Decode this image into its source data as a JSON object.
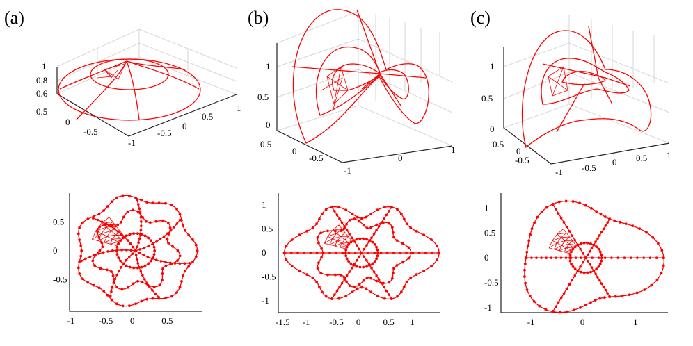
{
  "colors": {
    "curve": "#ff0000",
    "axis": "#222222",
    "grid": "#d6d6d6"
  },
  "chart_data": [
    {
      "panel": "(a)",
      "view": "3d",
      "type": "line",
      "z_ticks": [
        "0.6",
        "0.8",
        "1"
      ],
      "y_ticks": [
        "0.5",
        "0",
        "-0.5",
        "-1"
      ],
      "x_ticks": [
        "-0.5",
        "0",
        "0.5",
        "1"
      ]
    },
    {
      "panel": "(b)",
      "view": "3d",
      "type": "line",
      "z_ticks": [
        "0",
        "0.5",
        "1"
      ],
      "y_ticks": [
        "0.5",
        "0",
        "-0.5",
        "-1"
      ],
      "x_ticks": [
        "0",
        "1"
      ]
    },
    {
      "panel": "(c)",
      "view": "3d",
      "type": "line",
      "z_ticks": [
        "0",
        "0.5",
        "1"
      ],
      "y_ticks": [
        "0.5",
        "0",
        "-0.5"
      ],
      "x_ticks": [
        "-1",
        "-0.5",
        "0",
        "0.5",
        "1"
      ]
    },
    {
      "panel": "(a)",
      "view": "top",
      "type": "line",
      "x_ticks": [
        "-1",
        "-0.5",
        "0",
        "0.5"
      ],
      "y_ticks": [
        "0.5",
        "0",
        "-0.5"
      ],
      "xlim": [
        -1.05,
        1.05
      ],
      "ylim": [
        -1.05,
        1.0
      ]
    },
    {
      "panel": "(b)",
      "view": "top",
      "type": "line",
      "x_ticks": [
        "-1.5",
        "-1",
        "-0.5",
        "0",
        "0.5",
        "1"
      ],
      "y_ticks": [
        "1",
        "0.5",
        "0",
        "-0.5",
        "-1"
      ],
      "xlim": [
        -1.55,
        1.45
      ],
      "ylim": [
        -1.25,
        1.25
      ]
    },
    {
      "panel": "(c)",
      "view": "top",
      "type": "line",
      "x_ticks": [
        "-1",
        "0",
        "1"
      ],
      "y_ticks": [
        "1",
        "0.5",
        "0",
        "-0.5",
        "-1"
      ],
      "xlim": [
        -1.6,
        1.55
      ],
      "ylim": [
        -1.1,
        1.3
      ]
    }
  ]
}
